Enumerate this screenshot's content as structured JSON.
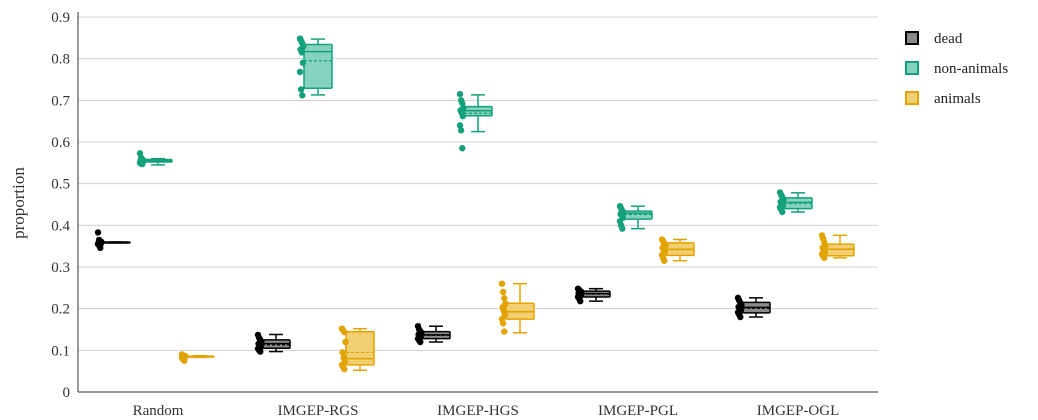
{
  "chart_data": {
    "type": "box",
    "ylabel": "proportion",
    "xlabel": "",
    "ylim": [
      0,
      0.9
    ],
    "yticks": [
      0,
      0.1,
      0.2,
      0.3,
      0.4,
      0.5,
      0.6,
      0.7,
      0.8,
      0.9
    ],
    "ytick_labels": [
      "0",
      "0.1",
      "0.2",
      "0.3",
      "0.4",
      "0.5",
      "0.6",
      "0.7",
      "0.8",
      "0.9"
    ],
    "grid": "horizontal",
    "legend_position": "top-right",
    "categories": [
      "Random",
      "IMGEP-RGS",
      "IMGEP-HGS",
      "IMGEP-PGL",
      "IMGEP-OGL"
    ],
    "series": [
      {
        "name": "dead",
        "color": "#000000",
        "fill": "#8a8a8a",
        "stats": [
          {
            "min": 0.358,
            "q1": 0.358,
            "median": 0.359,
            "mean": 0.359,
            "q3": 0.36,
            "max": 0.36,
            "points": [
              0.383,
              0.365,
              0.361,
              0.36,
              0.359,
              0.358,
              0.356,
              0.355,
              0.352,
              0.346
            ]
          },
          {
            "min": 0.097,
            "q1": 0.105,
            "median": 0.116,
            "mean": 0.113,
            "q3": 0.125,
            "max": 0.138,
            "points": [
              0.137,
              0.13,
              0.125,
              0.12,
              0.116,
              0.112,
              0.108,
              0.104,
              0.1,
              0.097
            ]
          },
          {
            "min": 0.12,
            "q1": 0.128,
            "median": 0.137,
            "mean": 0.136,
            "q3": 0.145,
            "max": 0.158,
            "points": [
              0.158,
              0.15,
              0.146,
              0.142,
              0.138,
              0.135,
              0.132,
              0.128,
              0.124,
              0.12
            ]
          },
          {
            "min": 0.218,
            "q1": 0.228,
            "median": 0.236,
            "mean": 0.235,
            "q3": 0.242,
            "max": 0.248,
            "points": [
              0.248,
              0.245,
              0.242,
              0.24,
              0.237,
              0.235,
              0.232,
              0.228,
              0.224,
              0.218
            ]
          },
          {
            "min": 0.18,
            "q1": 0.19,
            "median": 0.203,
            "mean": 0.201,
            "q3": 0.215,
            "max": 0.226,
            "points": [
              0.226,
              0.22,
              0.214,
              0.209,
              0.204,
              0.2,
              0.196,
              0.191,
              0.186,
              0.18
            ]
          }
        ]
      },
      {
        "name": "non-animals",
        "color": "#13a07a",
        "fill": "#86d3bd",
        "stats": [
          {
            "min": 0.545,
            "q1": 0.552,
            "median": 0.555,
            "mean": 0.554,
            "q3": 0.558,
            "max": 0.56,
            "points": [
              0.573,
              0.562,
              0.558,
              0.556,
              0.555,
              0.554,
              0.552,
              0.55,
              0.548,
              0.547
            ]
          },
          {
            "min": 0.713,
            "q1": 0.729,
            "median": 0.817,
            "mean": 0.795,
            "q3": 0.834,
            "max": 0.847,
            "points": [
              0.848,
              0.843,
              0.837,
              0.83,
              0.822,
              0.815,
              0.79,
              0.768,
              0.726,
              0.712
            ]
          },
          {
            "min": 0.625,
            "q1": 0.663,
            "median": 0.675,
            "mean": 0.669,
            "q3": 0.685,
            "max": 0.713,
            "points": [
              0.715,
              0.7,
              0.693,
              0.682,
              0.676,
              0.67,
              0.662,
              0.64,
              0.628,
              0.585
            ]
          },
          {
            "min": 0.392,
            "q1": 0.415,
            "median": 0.429,
            "mean": 0.426,
            "q3": 0.434,
            "max": 0.446,
            "points": [
              0.446,
              0.44,
              0.435,
              0.43,
              0.427,
              0.424,
              0.418,
              0.41,
              0.4,
              0.392
            ]
          },
          {
            "min": 0.432,
            "q1": 0.44,
            "median": 0.455,
            "mean": 0.452,
            "q3": 0.466,
            "max": 0.478,
            "points": [
              0.479,
              0.473,
              0.468,
              0.462,
              0.456,
              0.452,
              0.447,
              0.443,
              0.438,
              0.432
            ]
          }
        ]
      },
      {
        "name": "animals",
        "color": "#e0a300",
        "fill": "#f3cf74",
        "stats": [
          {
            "min": 0.083,
            "q1": 0.084,
            "median": 0.085,
            "mean": 0.085,
            "q3": 0.086,
            "max": 0.087,
            "points": [
              0.09,
              0.088,
              0.087,
              0.086,
              0.085,
              0.084,
              0.083,
              0.082,
              0.078,
              0.075
            ]
          },
          {
            "min": 0.052,
            "q1": 0.065,
            "median": 0.08,
            "mean": 0.095,
            "q3": 0.145,
            "max": 0.152,
            "points": [
              0.152,
              0.148,
              0.144,
              0.12,
              0.095,
              0.082,
              0.072,
              0.065,
              0.06,
              0.055
            ]
          },
          {
            "min": 0.142,
            "q1": 0.175,
            "median": 0.193,
            "mean": 0.192,
            "q3": 0.213,
            "max": 0.26,
            "points": [
              0.26,
              0.24,
              0.225,
              0.212,
              0.203,
              0.195,
              0.185,
              0.175,
              0.165,
              0.145
            ]
          },
          {
            "min": 0.315,
            "q1": 0.328,
            "median": 0.343,
            "mean": 0.341,
            "q3": 0.358,
            "max": 0.366,
            "points": [
              0.366,
              0.362,
              0.357,
              0.352,
              0.346,
              0.341,
              0.336,
              0.329,
              0.322,
              0.315
            ]
          },
          {
            "min": 0.322,
            "q1": 0.327,
            "median": 0.343,
            "mean": 0.342,
            "q3": 0.355,
            "max": 0.376,
            "points": [
              0.376,
              0.368,
              0.359,
              0.352,
              0.346,
              0.341,
              0.336,
              0.331,
              0.326,
              0.322
            ]
          }
        ]
      }
    ]
  }
}
